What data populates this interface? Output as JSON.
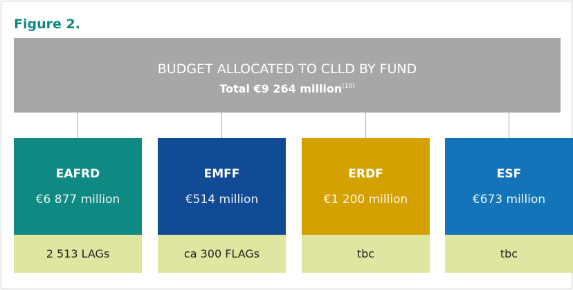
{
  "figure_label": "Figure 2.",
  "header": {
    "title": "BUDGET ALLOCATED TO CLLD BY FUND",
    "subtitle": "Total €9 264 million",
    "note": "(10)"
  },
  "funds": [
    {
      "name": "EAFRD",
      "amount": "€6 877 million",
      "groups": "2 513 LAGs",
      "color": "#0f8a83"
    },
    {
      "name": "EMFF",
      "amount": "€514 million",
      "groups": "ca 300 FLAGs",
      "color": "#114b95"
    },
    {
      "name": "ERDF",
      "amount": "€1 200 million",
      "groups": "tbc",
      "color": "#d5a100"
    },
    {
      "name": "ESF",
      "amount": "€673 million",
      "groups": "tbc",
      "color": "#1474b9"
    }
  ]
}
